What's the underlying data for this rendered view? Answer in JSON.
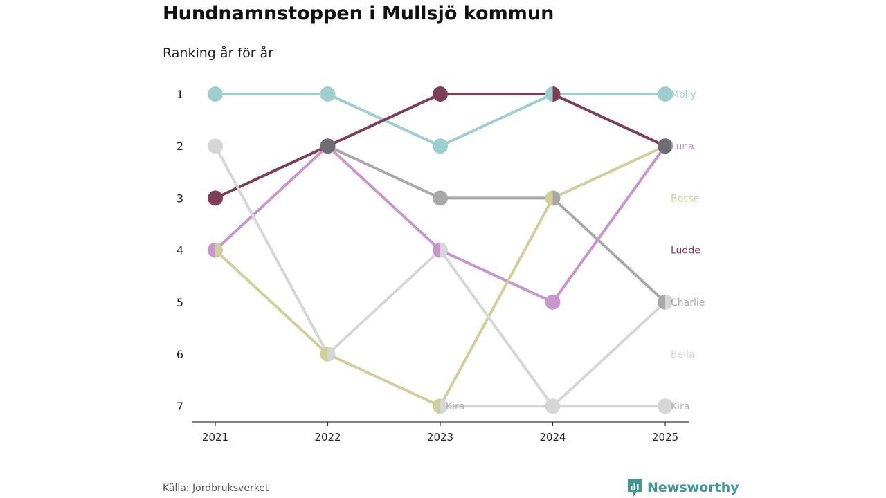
{
  "header": {
    "title": "Hundnamnstoppen i Mullsjö kommun",
    "subtitle": "Ranking år för år"
  },
  "footer": {
    "source": "Källa: Jordbruksverket",
    "brand": "Newsworthy"
  },
  "chart_data": {
    "type": "line",
    "chart_kind": "bump",
    "title": "Hundnamnstoppen i Mullsjö kommun",
    "subtitle": "Ranking år för år",
    "xlabel": "",
    "ylabel": "",
    "x": [
      "2021",
      "2022",
      "2023",
      "2024",
      "2025"
    ],
    "y_ticks": [
      1,
      2,
      3,
      4,
      5,
      6,
      7
    ],
    "ylim": [
      1,
      7
    ],
    "y_inverted": true,
    "grid": false,
    "legend": "end-labels",
    "overlap_color": "#6e6d73",
    "series": [
      {
        "name": "Molly",
        "color": "#9ccfcd",
        "values": [
          1,
          1,
          2,
          1,
          1
        ]
      },
      {
        "name": "Luna",
        "color": "#c896cd",
        "values": [
          4,
          2,
          4,
          5,
          2
        ]
      },
      {
        "name": "Bosse",
        "color": "#cfcf9a",
        "values": [
          4,
          6,
          7,
          3,
          2
        ]
      },
      {
        "name": "Ludde",
        "color": "#7f3e56",
        "values": [
          3,
          2,
          1,
          1,
          2
        ]
      },
      {
        "name": "Charlie",
        "color": "#a8a8a8",
        "values": [
          null,
          2,
          3,
          3,
          5
        ]
      },
      {
        "name": "Bella",
        "color": "#d6d6d6",
        "values": [
          2,
          6,
          4,
          7,
          5
        ]
      },
      {
        "name": "Kira",
        "color": "#d6d6d6",
        "values": [
          null,
          null,
          7,
          7,
          7
        ]
      }
    ],
    "labels": [
      {
        "text": "Molly",
        "color": "#9ccfcd",
        "x": "2025",
        "y": 1
      },
      {
        "text": "Luna",
        "color": "#c896cd",
        "x": "2025",
        "y": 2
      },
      {
        "text": "Bosse",
        "color": "#cfcf9a",
        "x": "2025",
        "y": 3
      },
      {
        "text": "Ludde",
        "color": "#7f3e56",
        "x": "2025",
        "y": 4
      },
      {
        "text": "Charlie",
        "color": "#a8a8a8",
        "x": "2025",
        "y": 5
      },
      {
        "text": "Bella",
        "color": "#d6d6d6",
        "x": "2025",
        "y": 6
      },
      {
        "text": "Kira",
        "color": "#b0b0b0",
        "x": "2025",
        "y": 7
      },
      {
        "text": "Kira",
        "color": "#b0b0b0",
        "x": "2023",
        "y": 7
      }
    ]
  }
}
